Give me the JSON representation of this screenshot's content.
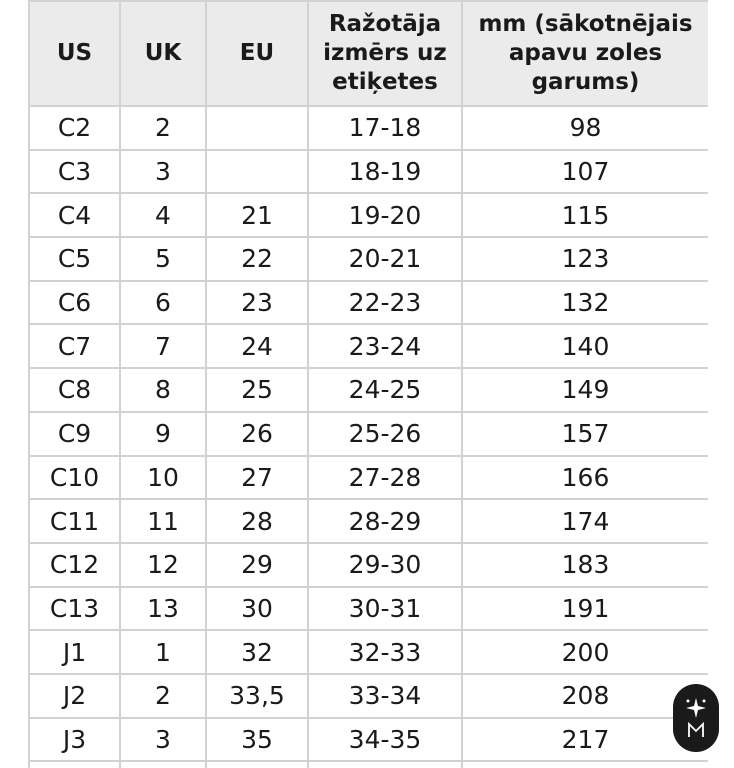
{
  "headers": [
    "US",
    "UK",
    "EU",
    "Ražotāja izmērs uz etiķetes",
    "mm (sākotnējais apavu zoles garums)"
  ],
  "rows": [
    [
      "C2",
      "2",
      "",
      "17-18",
      "98"
    ],
    [
      "C3",
      "3",
      "",
      "18-19",
      "107"
    ],
    [
      "C4",
      "4",
      "21",
      "19-20",
      "115"
    ],
    [
      "C5",
      "5",
      "22",
      "20-21",
      "123"
    ],
    [
      "C6",
      "6",
      "23",
      "22-23",
      "132"
    ],
    [
      "C7",
      "7",
      "24",
      "23-24",
      "140"
    ],
    [
      "C8",
      "8",
      "25",
      "24-25",
      "149"
    ],
    [
      "C9",
      "9",
      "26",
      "25-26",
      "157"
    ],
    [
      "C10",
      "10",
      "27",
      "27-28",
      "166"
    ],
    [
      "C11",
      "11",
      "28",
      "28-29",
      "174"
    ],
    [
      "C12",
      "12",
      "29",
      "29-30",
      "183"
    ],
    [
      "C13",
      "13",
      "30",
      "30-31",
      "191"
    ],
    [
      "J1",
      "1",
      "32",
      "32-33",
      "200"
    ],
    [
      "J2",
      "2",
      "33,5",
      "33-34",
      "208"
    ],
    [
      "J3",
      "3",
      "35",
      "34-35",
      "217"
    ],
    [
      "",
      "",
      "",
      "",
      ""
    ]
  ],
  "icons": {
    "badge": "sparkle-logo-icon"
  },
  "colors": {
    "header_bg": "#ebebeb",
    "border": "#d2d2d2",
    "badge_bg": "#1a1a1a"
  }
}
